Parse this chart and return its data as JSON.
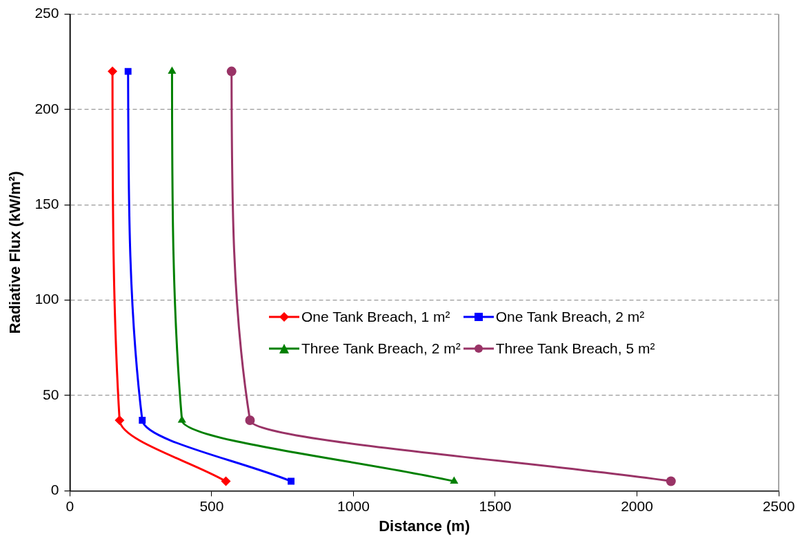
{
  "chart_data": {
    "type": "line",
    "xlabel": "Distance (m)",
    "ylabel": "Radiative Flux (kW/m²)",
    "xlim": [
      0,
      2500
    ],
    "xticks": [
      0,
      500,
      1000,
      1500,
      2000,
      2500
    ],
    "ylim": [
      0,
      250
    ],
    "yticks": [
      0,
      50,
      100,
      150,
      200,
      250
    ],
    "grid": "y",
    "legend": "right",
    "line_style": "solid",
    "series": [
      {
        "name": "One Tank Breach, 1 m²",
        "color": "#ff0000",
        "marker": "diamond",
        "x": [
          150,
          175,
          550
        ],
        "values": [
          220,
          37,
          5
        ]
      },
      {
        "name": "One Tank Breach, 2 m²",
        "color": "#0000ff",
        "marker": "square",
        "x": [
          205,
          255,
          780
        ],
        "values": [
          220,
          37,
          5
        ]
      },
      {
        "name": "Three Tank Breach, 2 m²",
        "color": "#008000",
        "marker": "triangle",
        "x": [
          360,
          395,
          1355
        ],
        "values": [
          220,
          37,
          5
        ]
      },
      {
        "name": "Three Tank Breach, 5 m²",
        "color": "#993366",
        "marker": "circle",
        "x": [
          570,
          635,
          2120
        ],
        "values": [
          220,
          37,
          5
        ]
      }
    ]
  }
}
